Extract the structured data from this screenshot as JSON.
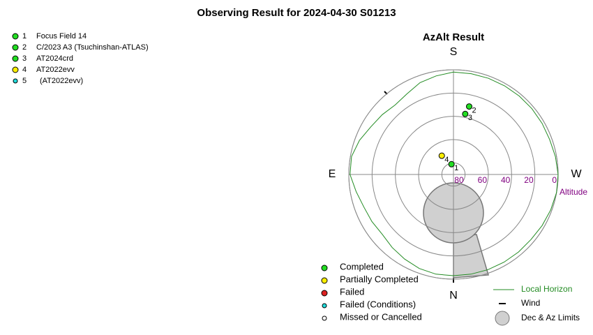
{
  "title": "Observing Result for 2024-04-30 S01213",
  "targets": [
    {
      "number": "1",
      "name": "Focus Field 14",
      "color": "#22dd22"
    },
    {
      "number": "2",
      "name": "C/2023 A3 (Tsuchinshan-ATLAS)",
      "color": "#22dd22"
    },
    {
      "number": "3",
      "name": "AT2024crd",
      "color": "#22dd22"
    },
    {
      "number": "4",
      "name": "AT2022evv",
      "color": "#ffee00"
    },
    {
      "number": "5",
      "name": "(AT2022evv)",
      "color": "#22dddd"
    }
  ],
  "chart_data": {
    "type": "polar",
    "title": "AzAlt Result",
    "directions": {
      "top": "S",
      "left": "E",
      "right": "W",
      "bottom": "N"
    },
    "radial_label": "Altitude",
    "rlim": [
      90,
      0
    ],
    "rticks": [
      80,
      60,
      40,
      20,
      0
    ],
    "points": {
      "azimuth": [
        169,
        193,
        191,
        148,
        null
      ],
      "altitude": [
        81,
        30,
        37,
        71,
        null
      ]
    },
    "horizon": {
      "name": "Local Horizon",
      "color": "#228b22",
      "azimuth": [
        0,
        10,
        20,
        30,
        40,
        50,
        60,
        70,
        80,
        90,
        100,
        110,
        120,
        130,
        140,
        150,
        160,
        170,
        180,
        190,
        200,
        210,
        220,
        230,
        240,
        250,
        260,
        270,
        280,
        290,
        300,
        310,
        320,
        330,
        340,
        350
      ],
      "altitude": [
        3,
        3,
        4,
        6,
        8,
        10,
        9,
        8,
        5,
        1,
        1,
        4,
        8,
        10,
        12,
        10,
        6,
        4,
        2,
        2,
        2,
        2,
        2,
        2,
        2,
        2,
        1,
        0,
        0,
        1,
        2,
        3,
        3,
        3,
        3,
        3
      ]
    },
    "status_legend": [
      {
        "label": "Completed",
        "color": "#22dd22"
      },
      {
        "label": "Partially Completed",
        "color": "#ffee00"
      },
      {
        "label": "Failed",
        "color": "#dd2222"
      },
      {
        "label": "Failed (Conditions)",
        "color": "#22dddd"
      },
      {
        "label": "Missed or Cancelled",
        "color": "#ffffff"
      }
    ],
    "wind_label": "Wind",
    "limits_label": "Dec & Az Limits"
  }
}
